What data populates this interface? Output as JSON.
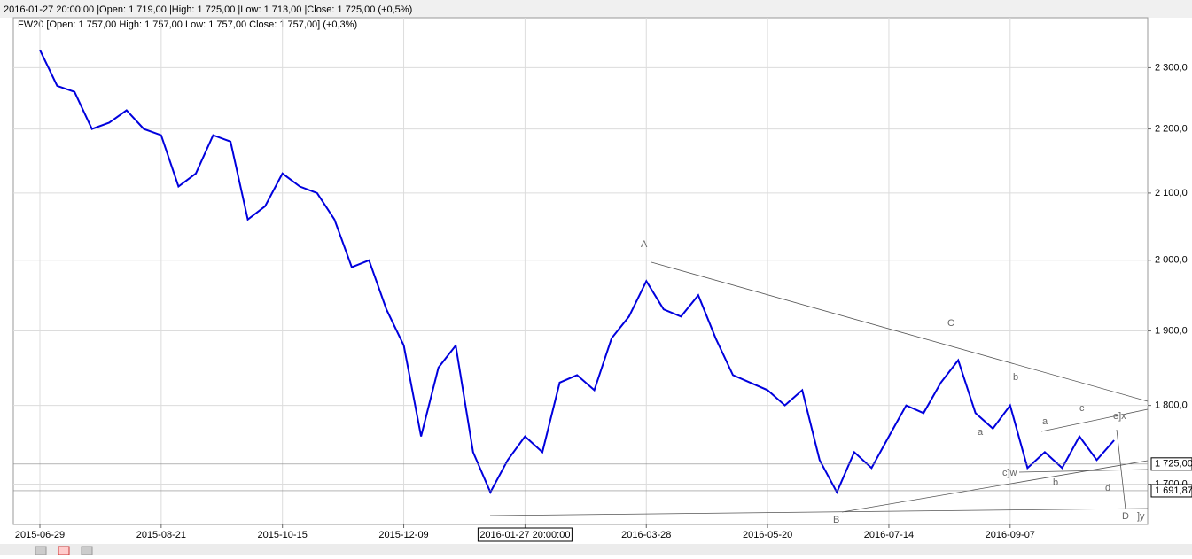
{
  "header": "2016-01-27 20:00:00 |Open: 1 719,00 |High: 1 725,00 |Low: 1 713,00 |Close: 1 725,00 (+0,5%)",
  "chart_data": {
    "type": "line",
    "title": "FW20 [Open: 1 757,00  High: 1 757,00  Low: 1 757,00  Close: 1 757,00] (+0,3%)",
    "categories": [
      "2015-06-29",
      null,
      null,
      null,
      null,
      null,
      null,
      "2015-08-21",
      null,
      null,
      null,
      null,
      null,
      null,
      "2015-10-15",
      null,
      null,
      null,
      null,
      null,
      null,
      "2015-12-09",
      null,
      null,
      null,
      null,
      null,
      null,
      "2016-01-27 20:00:00",
      null,
      null,
      null,
      null,
      null,
      null,
      "2016-03-28",
      null,
      null,
      null,
      null,
      null,
      null,
      "2016-05-20",
      null,
      null,
      null,
      null,
      null,
      null,
      "2016-07-14",
      null,
      null,
      null,
      null,
      null,
      null,
      "2016-09-07",
      null,
      null,
      null,
      null,
      null,
      null
    ],
    "values": [
      2330,
      2270,
      2260,
      2200,
      2210,
      2230,
      2200,
      2190,
      2110,
      2130,
      2190,
      2180,
      2060,
      2080,
      2130,
      2110,
      2100,
      2060,
      1990,
      2000,
      1930,
      1880,
      1760,
      1850,
      1880,
      1740,
      1690,
      1730,
      1760,
      1740,
      1830,
      1840,
      1820,
      1890,
      1920,
      1970,
      1930,
      1920,
      1950,
      1890,
      1840,
      1830,
      1820,
      1800,
      1820,
      1730,
      1690,
      1740,
      1720,
      1760,
      1800,
      1790,
      1830,
      1860,
      1790,
      1770,
      1800,
      1720,
      1740,
      1720,
      1760,
      1730,
      1755
    ],
    "color": "#0000dd",
    "ylim": [
      1651,
      2385
    ],
    "log": true,
    "grid": true,
    "yticks": [
      {
        "value": 1700,
        "label": "1 700,0"
      },
      {
        "value": 1800,
        "label": "1 800,0"
      },
      {
        "value": 1900,
        "label": "1 900,0"
      },
      {
        "value": 2000,
        "label": "2 000,0"
      },
      {
        "value": 2100,
        "label": "2 100,0"
      },
      {
        "value": 2200,
        "label": "2 200,0"
      },
      {
        "value": 2300,
        "label": "2 300,0"
      }
    ],
    "price_markers": [
      {
        "value": 1725,
        "label": "1 725,00"
      },
      {
        "value": 1691.87,
        "label": "1 691,87"
      }
    ],
    "annotations": [
      "A",
      "C",
      "B",
      "b",
      "a",
      "c]w",
      "b",
      "a",
      "c",
      "d",
      "e]x",
      "D",
      "]y"
    ]
  }
}
